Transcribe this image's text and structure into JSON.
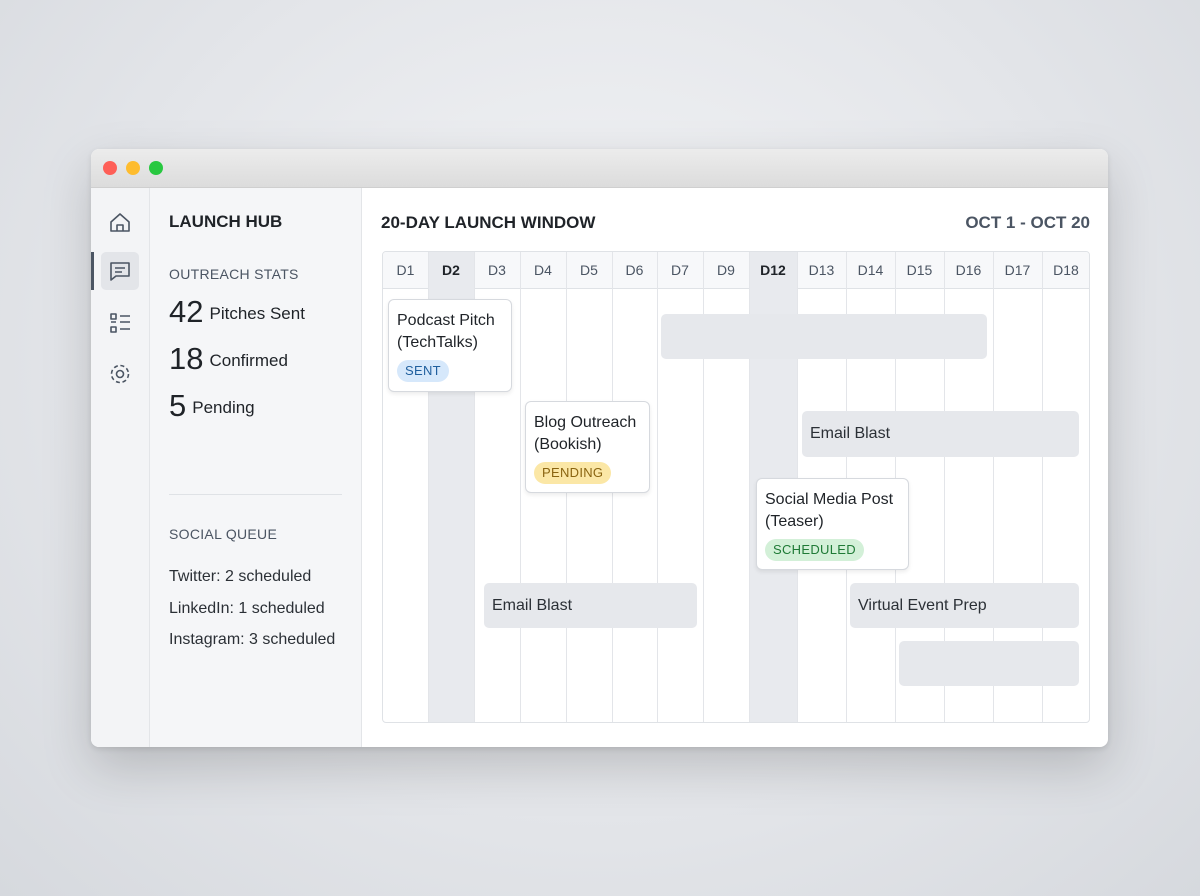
{
  "sidebar": {
    "title": "LAUNCH HUB",
    "outreach_heading": "OUTREACH STATS",
    "stats": [
      {
        "value": "42",
        "label": "Pitches Sent"
      },
      {
        "value": "18",
        "label": "Confirmed"
      },
      {
        "value": "5",
        "label": "Pending"
      }
    ],
    "social_heading": "SOCIAL QUEUE",
    "social": [
      "Twitter: 2 scheduled",
      "LinkedIn: 1 scheduled",
      "Instagram: 3 scheduled"
    ]
  },
  "timeline": {
    "title": "20-DAY LAUNCH WINDOW",
    "range": "OCT 1 - OCT 20",
    "days": [
      "D1",
      "D2",
      "D3",
      "D4",
      "D5",
      "D6",
      "D7",
      "D9",
      "D12",
      "D13",
      "D14",
      "D15",
      "D16",
      "D17",
      "D18"
    ],
    "cards": [
      {
        "title": "Podcast Pitch (TechTalks)",
        "status": "SENT"
      },
      {
        "title": "Blog Outreach (Bookish)",
        "status": "PENDING"
      },
      {
        "title": "Social Media Post (Teaser)",
        "status": "SCHEDULED"
      }
    ],
    "bars": [
      "Email Blast",
      "Email Blast",
      "Virtual Event Prep"
    ]
  }
}
